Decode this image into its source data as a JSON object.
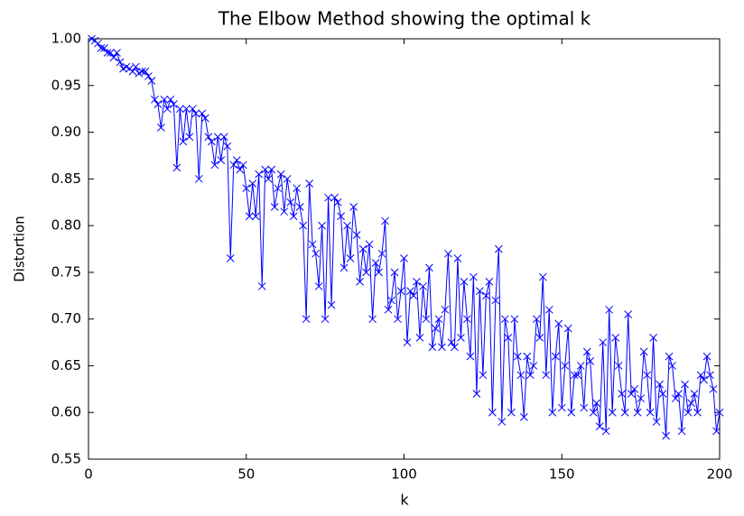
{
  "chart_data": {
    "type": "line",
    "title": "The Elbow Method showing the optimal k",
    "xlabel": "k",
    "ylabel": "Distortion",
    "xlim": [
      0,
      200
    ],
    "xticks": [
      0,
      50,
      100,
      150,
      200
    ],
    "ylim": [
      0.55,
      1.0
    ],
    "yticks": [
      0.55,
      {
        "value": 0.6,
        "label": "0.60"
      },
      0.65,
      {
        "value": 0.7,
        "label": "0.70"
      },
      0.75,
      {
        "value": 0.8,
        "label": "0.80"
      },
      0.85,
      {
        "value": 0.9,
        "label": "0.90"
      },
      0.95,
      {
        "value": 1.0,
        "label": "1.00"
      }
    ],
    "marker": "x",
    "x": [
      1,
      2,
      3,
      4,
      5,
      6,
      7,
      8,
      9,
      10,
      11,
      12,
      13,
      14,
      15,
      16,
      17,
      18,
      19,
      20,
      21,
      22,
      23,
      24,
      25,
      26,
      27,
      28,
      29,
      30,
      31,
      32,
      33,
      34,
      35,
      36,
      37,
      38,
      39,
      40,
      41,
      42,
      43,
      44,
      45,
      46,
      47,
      48,
      49,
      50,
      51,
      52,
      53,
      54,
      55,
      56,
      57,
      58,
      59,
      60,
      61,
      62,
      63,
      64,
      65,
      66,
      67,
      68,
      69,
      70,
      71,
      72,
      73,
      74,
      75,
      76,
      77,
      78,
      79,
      80,
      81,
      82,
      83,
      84,
      85,
      86,
      87,
      88,
      89,
      90,
      91,
      92,
      93,
      94,
      95,
      96,
      97,
      98,
      99,
      100,
      101,
      102,
      103,
      104,
      105,
      106,
      107,
      108,
      109,
      110,
      111,
      112,
      113,
      114,
      115,
      116,
      117,
      118,
      119,
      120,
      121,
      122,
      123,
      124,
      125,
      126,
      127,
      128,
      129,
      130,
      131,
      132,
      133,
      134,
      135,
      136,
      137,
      138,
      139,
      140,
      141,
      142,
      143,
      144,
      145,
      146,
      147,
      148,
      149,
      150,
      151,
      152,
      153,
      154,
      155,
      156,
      157,
      158,
      159,
      160,
      161,
      162,
      163,
      164,
      165,
      166,
      167,
      168,
      169,
      170,
      171,
      172,
      173,
      174,
      175,
      176,
      177,
      178,
      179,
      180,
      181,
      182,
      183,
      184,
      185,
      186,
      187,
      188,
      189,
      190,
      191,
      192,
      193,
      194,
      195,
      196,
      197,
      198,
      199,
      200
    ],
    "series": [
      {
        "color": "#0000ff",
        "values": [
          1.0,
          0.998,
          0.995,
          0.99,
          0.99,
          0.985,
          0.985,
          0.98,
          0.985,
          0.975,
          0.968,
          0.97,
          0.968,
          0.965,
          0.97,
          0.963,
          0.965,
          0.965,
          0.96,
          0.955,
          0.935,
          0.93,
          0.905,
          0.935,
          0.925,
          0.935,
          0.93,
          0.862,
          0.925,
          0.89,
          0.925,
          0.895,
          0.925,
          0.92,
          0.85,
          0.92,
          0.915,
          0.895,
          0.89,
          0.865,
          0.895,
          0.87,
          0.895,
          0.885,
          0.765,
          0.865,
          0.87,
          0.86,
          0.865,
          0.84,
          0.81,
          0.845,
          0.81,
          0.855,
          0.735,
          0.86,
          0.85,
          0.86,
          0.82,
          0.84,
          0.855,
          0.815,
          0.85,
          0.825,
          0.81,
          0.84,
          0.82,
          0.8,
          0.7,
          0.845,
          0.78,
          0.77,
          0.735,
          0.8,
          0.7,
          0.83,
          0.715,
          0.83,
          0.825,
          0.81,
          0.755,
          0.8,
          0.765,
          0.82,
          0.79,
          0.74,
          0.775,
          0.75,
          0.78,
          0.7,
          0.76,
          0.75,
          0.77,
          0.805,
          0.71,
          0.72,
          0.75,
          0.7,
          0.73,
          0.765,
          0.675,
          0.73,
          0.725,
          0.74,
          0.68,
          0.735,
          0.7,
          0.755,
          0.67,
          0.69,
          0.7,
          0.67,
          0.71,
          0.77,
          0.675,
          0.67,
          0.765,
          0.68,
          0.74,
          0.7,
          0.66,
          0.745,
          0.62,
          0.73,
          0.64,
          0.725,
          0.74,
          0.6,
          0.72,
          0.775,
          0.59,
          0.7,
          0.68,
          0.6,
          0.7,
          0.66,
          0.64,
          0.595,
          0.66,
          0.64,
          0.65,
          0.7,
          0.68,
          0.745,
          0.64,
          0.71,
          0.6,
          0.66,
          0.695,
          0.605,
          0.65,
          0.69,
          0.6,
          0.64,
          0.64,
          0.65,
          0.605,
          0.665,
          0.655,
          0.6,
          0.61,
          0.585,
          0.675,
          0.58,
          0.71,
          0.6,
          0.68,
          0.65,
          0.62,
          0.6,
          0.705,
          0.62,
          0.625,
          0.6,
          0.615,
          0.665,
          0.64,
          0.6,
          0.68,
          0.59,
          0.63,
          0.62,
          0.575,
          0.66,
          0.65,
          0.615,
          0.62,
          0.58,
          0.63,
          0.6,
          0.61,
          0.62,
          0.6,
          0.64,
          0.635,
          0.66,
          0.64,
          0.625,
          0.58,
          0.6
        ]
      }
    ]
  }
}
